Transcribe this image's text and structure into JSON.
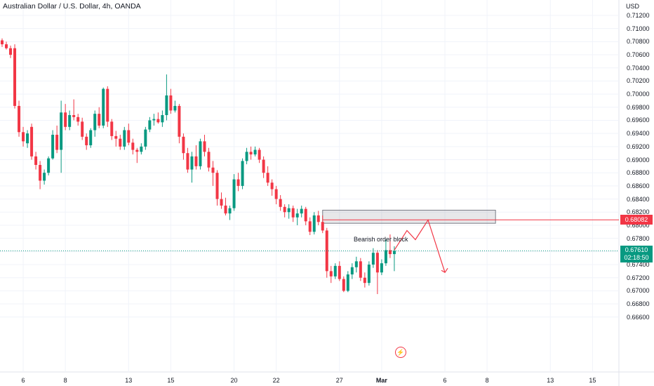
{
  "header": {
    "title": "Australian Dollar / U.S. Dollar, 4h, OANDA"
  },
  "badges": {
    "level_price": "0.68082",
    "last_price": "0.67610",
    "countdown": "02:18:50",
    "level_color": "#f23645",
    "last_color": "#089981"
  },
  "annotation": {
    "order_block_label": "Bearish order block"
  },
  "icons": {
    "flash": "flash-icon"
  },
  "chart_data": {
    "type": "candlestick",
    "title": "Australian Dollar / U.S. Dollar, 4h, OANDA",
    "y_unit": "USD",
    "ylim": [
      0.666,
      0.7125
    ],
    "y_ticks": [
      "0.71200",
      "0.71000",
      "0.70800",
      "0.70600",
      "0.70400",
      "0.70200",
      "0.70000",
      "0.69800",
      "0.69600",
      "0.69400",
      "0.69200",
      "0.69000",
      "0.68800",
      "0.68600",
      "0.68400",
      "0.68200",
      "0.68000",
      "0.67800",
      "0.67600",
      "0.67400",
      "0.67200",
      "0.67000",
      "0.66800",
      "0.66600"
    ],
    "x_ticks": [
      {
        "label": "6",
        "bold": false,
        "bar": 5
      },
      {
        "label": "8",
        "bold": false,
        "bar": 15
      },
      {
        "label": "13",
        "bold": false,
        "bar": 30
      },
      {
        "label": "15",
        "bold": false,
        "bar": 40
      },
      {
        "label": "20",
        "bold": false,
        "bar": 55
      },
      {
        "label": "22",
        "bold": false,
        "bar": 65
      },
      {
        "label": "27",
        "bold": false,
        "bar": 80
      },
      {
        "label": "Mar",
        "bold": true,
        "bar": 90
      },
      {
        "label": "6",
        "bold": false,
        "bar": 105
      },
      {
        "label": "8",
        "bold": false,
        "bar": 115
      },
      {
        "label": "13",
        "bold": false,
        "bar": 130
      },
      {
        "label": "15",
        "bold": false,
        "bar": 140
      }
    ],
    "bars_total": 145,
    "last_bar": 93,
    "grid": true,
    "ohlc": [
      [
        0.7082,
        0.7085,
        0.7072,
        0.7076
      ],
      [
        0.7076,
        0.708,
        0.7068,
        0.707
      ],
      [
        0.707,
        0.7074,
        0.7055,
        0.706
      ],
      [
        0.707,
        0.7076,
        0.6978,
        0.6982
      ],
      [
        0.6982,
        0.699,
        0.6935,
        0.6942
      ],
      [
        0.6942,
        0.695,
        0.692,
        0.6928
      ],
      [
        0.6925,
        0.6945,
        0.6918,
        0.694
      ],
      [
        0.695,
        0.6955,
        0.69,
        0.6905
      ],
      [
        0.6905,
        0.6912,
        0.6885,
        0.6892
      ],
      [
        0.6892,
        0.6898,
        0.6855,
        0.6868
      ],
      [
        0.6868,
        0.6885,
        0.6862,
        0.688
      ],
      [
        0.688,
        0.6905,
        0.6876,
        0.6902
      ],
      [
        0.6902,
        0.6945,
        0.69,
        0.6938
      ],
      [
        0.6938,
        0.6952,
        0.691,
        0.6915
      ],
      [
        0.6915,
        0.699,
        0.688,
        0.6972
      ],
      [
        0.6972,
        0.6985,
        0.6945,
        0.695
      ],
      [
        0.695,
        0.6975,
        0.6945,
        0.6968
      ],
      [
        0.6968,
        0.6992,
        0.696,
        0.6965
      ],
      [
        0.6965,
        0.697,
        0.6952,
        0.6958
      ],
      [
        0.6958,
        0.6964,
        0.693,
        0.6935
      ],
      [
        0.6935,
        0.694,
        0.6915,
        0.6922
      ],
      [
        0.6922,
        0.6948,
        0.6918,
        0.6945
      ],
      [
        0.6945,
        0.6975,
        0.6935,
        0.697
      ],
      [
        0.697,
        0.698,
        0.6948,
        0.6952
      ],
      [
        0.6952,
        0.701,
        0.6948,
        0.7008
      ],
      [
        0.7008,
        0.7012,
        0.695,
        0.6958
      ],
      [
        0.6958,
        0.6962,
        0.693,
        0.6936
      ],
      [
        0.6936,
        0.6944,
        0.692,
        0.6932
      ],
      [
        0.6932,
        0.6938,
        0.6915,
        0.692
      ],
      [
        0.692,
        0.695,
        0.6915,
        0.6945
      ],
      [
        0.6945,
        0.6955,
        0.6922,
        0.6926
      ],
      [
        0.6926,
        0.6932,
        0.6908,
        0.6915
      ],
      [
        0.6915,
        0.6918,
        0.6895,
        0.6912
      ],
      [
        0.6912,
        0.6925,
        0.6908,
        0.692
      ],
      [
        0.692,
        0.695,
        0.6915,
        0.6946
      ],
      [
        0.6946,
        0.6965,
        0.6942,
        0.696
      ],
      [
        0.696,
        0.697,
        0.6952,
        0.6962
      ],
      [
        0.6962,
        0.6972,
        0.6955,
        0.6957
      ],
      [
        0.6957,
        0.6975,
        0.695,
        0.6968
      ],
      [
        0.6968,
        0.703,
        0.696,
        0.6998
      ],
      [
        0.6998,
        0.7008,
        0.697,
        0.6975
      ],
      [
        0.6975,
        0.699,
        0.6972,
        0.6982
      ],
      [
        0.6982,
        0.6985,
        0.6925,
        0.6935
      ],
      [
        0.6935,
        0.694,
        0.69,
        0.691
      ],
      [
        0.691,
        0.6918,
        0.688,
        0.6885
      ],
      [
        0.6885,
        0.6912,
        0.6865,
        0.6905
      ],
      [
        0.6905,
        0.6922,
        0.6885,
        0.689
      ],
      [
        0.689,
        0.6932,
        0.6885,
        0.6928
      ],
      [
        0.6928,
        0.6938,
        0.6905,
        0.6912
      ],
      [
        0.6912,
        0.6918,
        0.6882,
        0.6888
      ],
      [
        0.6888,
        0.6898,
        0.686,
        0.688
      ],
      [
        0.688,
        0.6884,
        0.683,
        0.684
      ],
      [
        0.684,
        0.685,
        0.6825,
        0.683
      ],
      [
        0.683,
        0.6842,
        0.6815,
        0.6818
      ],
      [
        0.6818,
        0.683,
        0.6808,
        0.6826
      ],
      [
        0.6826,
        0.6878,
        0.6822,
        0.687
      ],
      [
        0.687,
        0.688,
        0.6852,
        0.686
      ],
      [
        0.686,
        0.6902,
        0.6855,
        0.6898
      ],
      [
        0.6898,
        0.6918,
        0.6893,
        0.6912
      ],
      [
        0.6912,
        0.692,
        0.69,
        0.6908
      ],
      [
        0.6908,
        0.692,
        0.6905,
        0.6915
      ],
      [
        0.6915,
        0.6918,
        0.6895,
        0.69
      ],
      [
        0.69,
        0.6905,
        0.6872,
        0.688
      ],
      [
        0.688,
        0.689,
        0.686,
        0.6865
      ],
      [
        0.6865,
        0.687,
        0.6845,
        0.6855
      ],
      [
        0.6855,
        0.686,
        0.6832,
        0.684
      ],
      [
        0.684,
        0.6846,
        0.6822,
        0.6828
      ],
      [
        0.6828,
        0.6832,
        0.6812,
        0.682
      ],
      [
        0.682,
        0.6832,
        0.681,
        0.6826
      ],
      [
        0.6826,
        0.683,
        0.6805,
        0.6812
      ],
      [
        0.6812,
        0.6825,
        0.68,
        0.6818
      ],
      [
        0.6818,
        0.683,
        0.6812,
        0.6825
      ],
      [
        0.6825,
        0.6828,
        0.68,
        0.6806
      ],
      [
        0.6806,
        0.6812,
        0.6785,
        0.679
      ],
      [
        0.679,
        0.682,
        0.6786,
        0.6815
      ],
      [
        0.6815,
        0.6822,
        0.68,
        0.6805
      ],
      [
        0.6805,
        0.6815,
        0.6788,
        0.6792
      ],
      [
        0.6792,
        0.6796,
        0.672,
        0.673
      ],
      [
        0.673,
        0.6738,
        0.6712,
        0.6722
      ],
      [
        0.6722,
        0.6742,
        0.6718,
        0.6738
      ],
      [
        0.6738,
        0.6745,
        0.6715,
        0.6718
      ],
      [
        0.6718,
        0.6722,
        0.6698,
        0.67
      ],
      [
        0.67,
        0.673,
        0.6698,
        0.6725
      ],
      [
        0.6725,
        0.6742,
        0.6718,
        0.6736
      ],
      [
        0.6736,
        0.6752,
        0.6728,
        0.6745
      ],
      [
        0.6745,
        0.675,
        0.6715,
        0.672
      ],
      [
        0.672,
        0.6728,
        0.6705,
        0.6712
      ],
      [
        0.6712,
        0.6745,
        0.6708,
        0.674
      ],
      [
        0.674,
        0.6765,
        0.6735,
        0.6758
      ],
      [
        0.6758,
        0.6762,
        0.6695,
        0.6728
      ],
      [
        0.6728,
        0.6748,
        0.6724,
        0.6742
      ],
      [
        0.6742,
        0.6778,
        0.6738,
        0.6762
      ],
      [
        0.6762,
        0.6786,
        0.675,
        0.6756
      ],
      [
        0.6756,
        0.6768,
        0.673,
        0.6761
      ]
    ],
    "reference_levels": [
      {
        "price": 0.68082,
        "color": "#f23645"
      },
      {
        "price": 0.6761,
        "color": "#089981"
      }
    ],
    "zones": [
      {
        "label": "Bearish order block",
        "from_bar": 76,
        "to_bar": 117,
        "top": 0.6823,
        "bottom": 0.6803
      }
    ],
    "projection_path": [
      {
        "bar": 93,
        "price": 0.6762
      },
      {
        "bar": 96,
        "price": 0.6792
      },
      {
        "bar": 98,
        "price": 0.6778
      },
      {
        "bar": 101,
        "price": 0.6808
      },
      {
        "bar": 105,
        "price": 0.6728
      }
    ]
  }
}
